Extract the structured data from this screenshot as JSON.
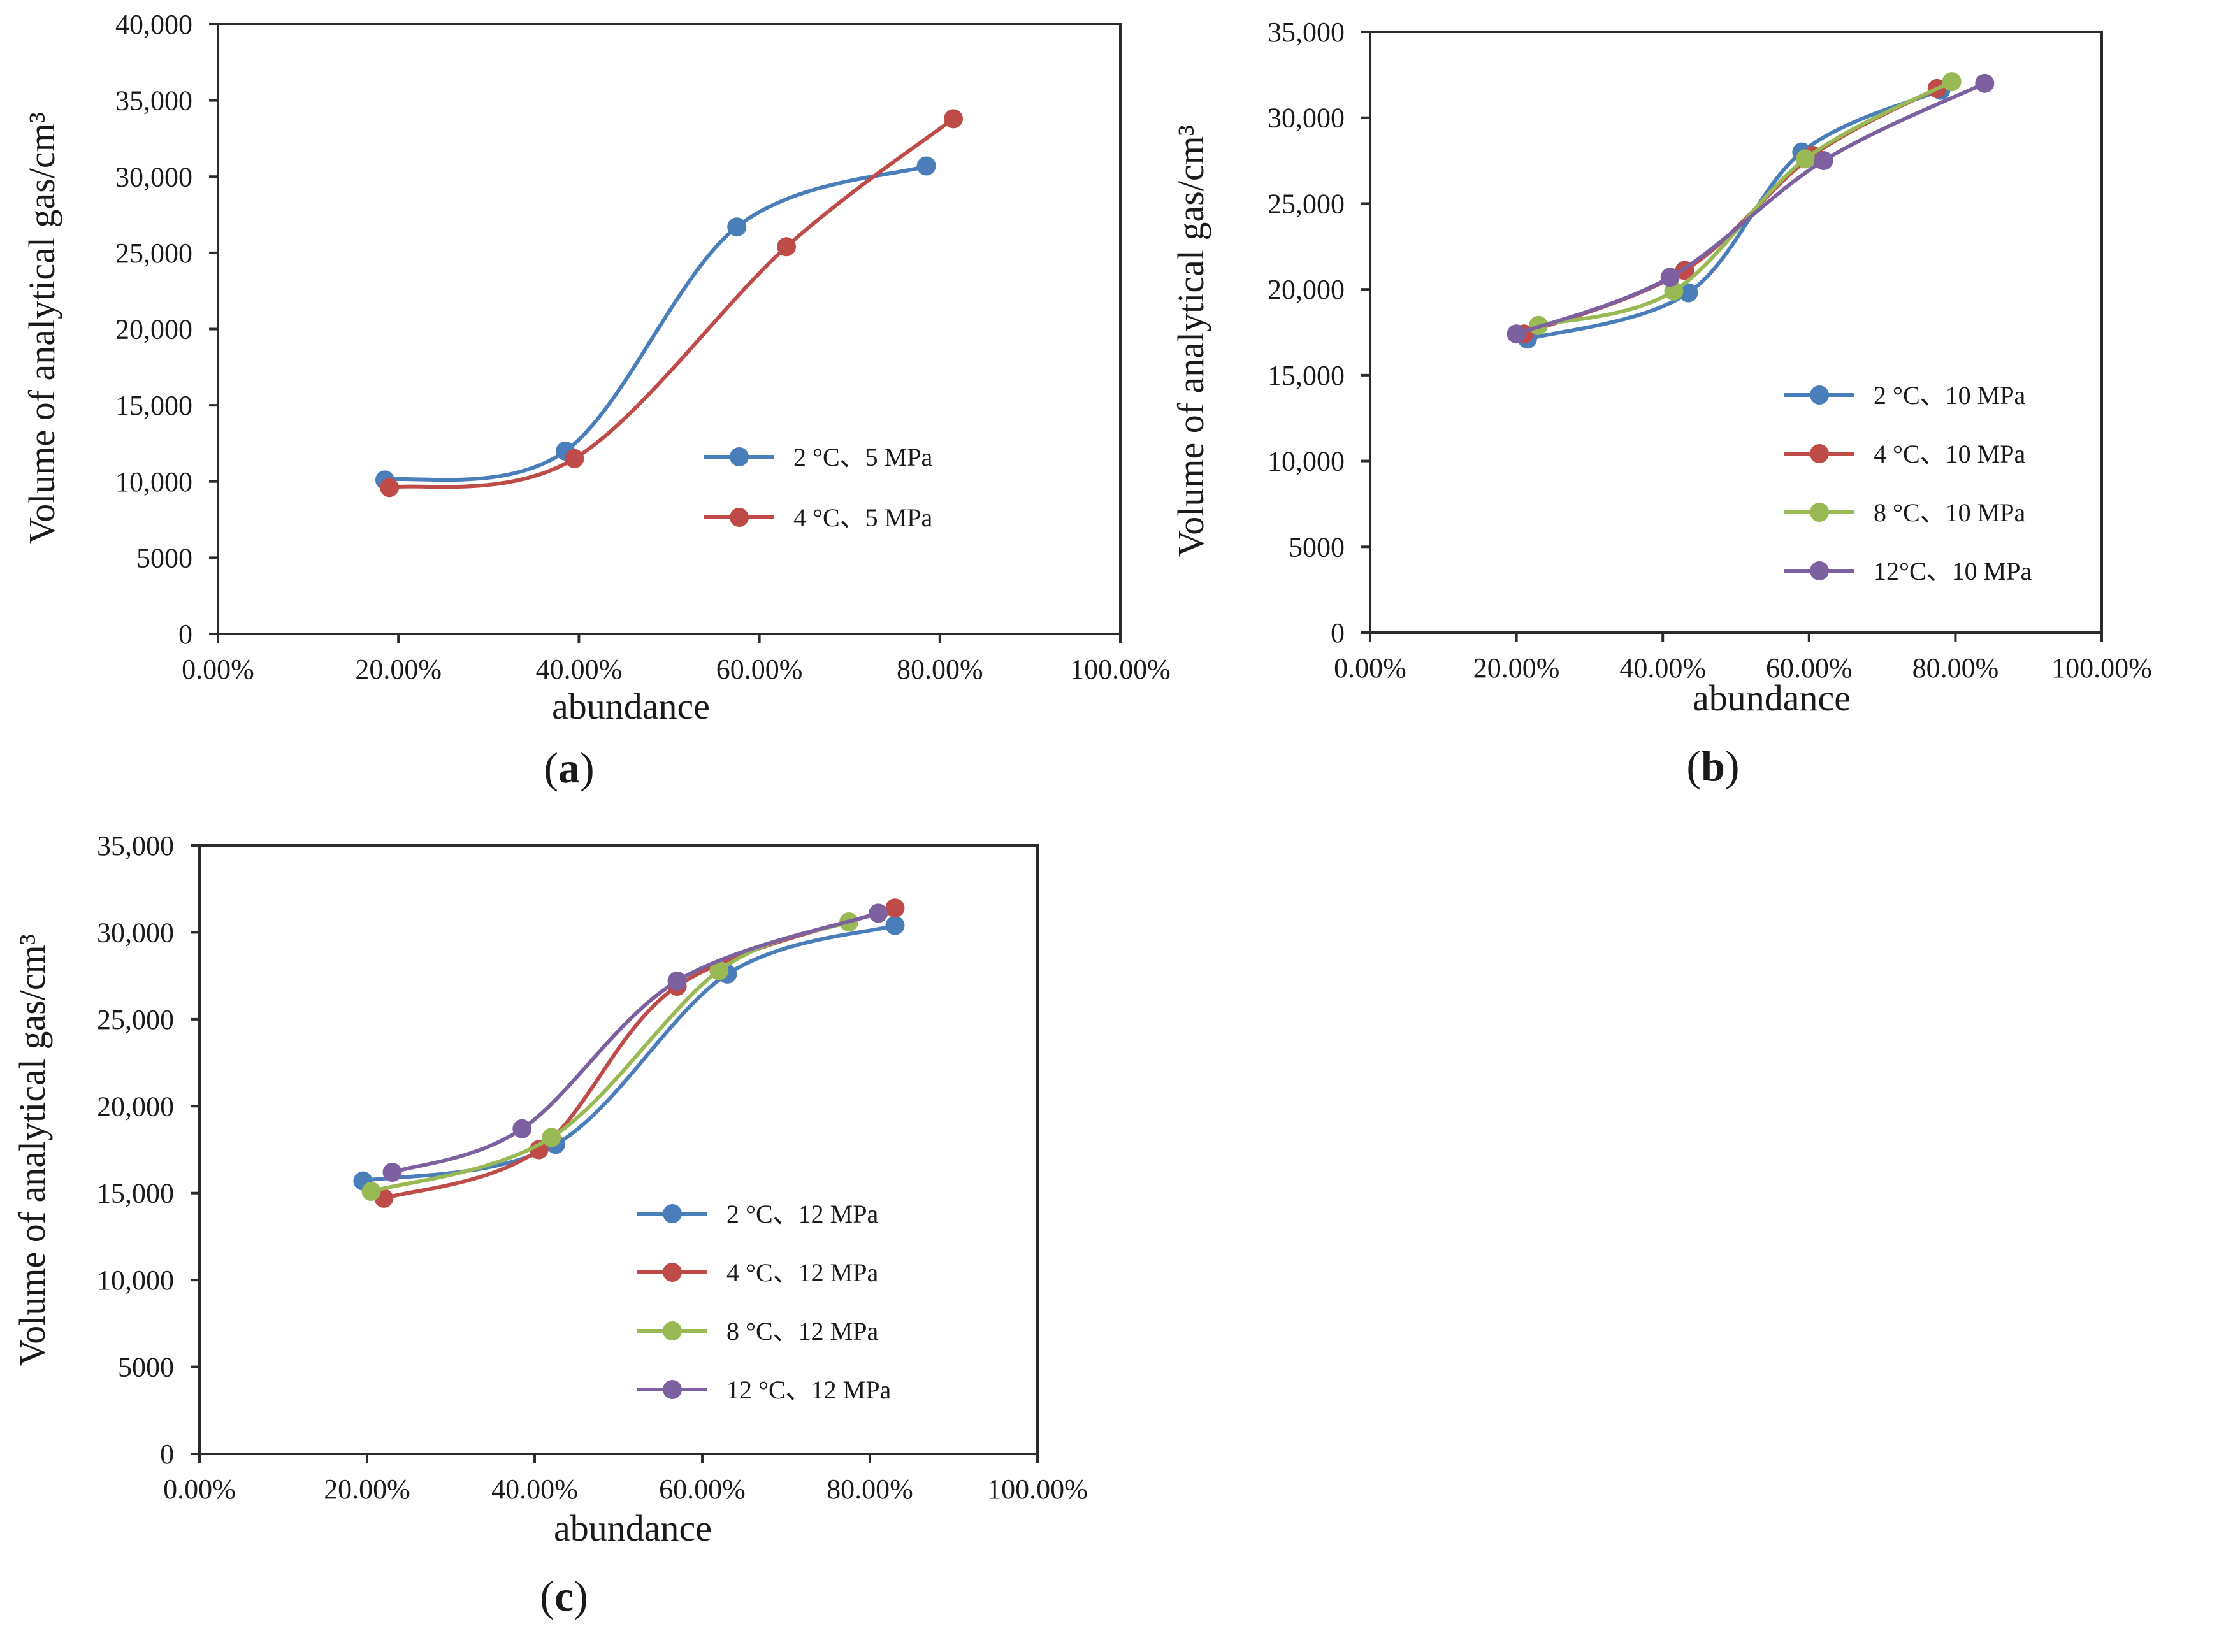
{
  "chart_data": [
    {
      "id": "a",
      "type": "line",
      "panel_label": "(a)",
      "panel_letter": "a",
      "xlabel": "abundance",
      "ylabel": "Volume of analytical gas/cm³",
      "xlim": [
        0,
        100
      ],
      "ylim": [
        0,
        40000
      ],
      "x_ticks": [
        0,
        20,
        40,
        60,
        80,
        100
      ],
      "x_tick_labels": [
        "0.00%",
        "20.00%",
        "40.00%",
        "60.00%",
        "80.00%",
        "100.00%"
      ],
      "y_ticks": [
        0,
        5000,
        10000,
        15000,
        20000,
        25000,
        30000,
        35000,
        40000
      ],
      "y_tick_labels": [
        "0",
        "5000",
        "10,000",
        "15,000",
        "20,000",
        "25,000",
        "30,000",
        "35,000",
        "40,000"
      ],
      "grid": false,
      "legend_position": "right",
      "series": [
        {
          "name": "2 °C、5 MPa",
          "color": "#4a7ebb",
          "points": [
            [
              18.5,
              10100
            ],
            [
              38.5,
              12000
            ],
            [
              57.5,
              26700
            ],
            [
              78.5,
              30700
            ]
          ]
        },
        {
          "name": "4 °C、5 MPa",
          "color": "#be4b48",
          "points": [
            [
              19,
              9600
            ],
            [
              39.5,
              11500
            ],
            [
              63,
              25400
            ],
            [
              81.5,
              33800
            ]
          ]
        }
      ]
    },
    {
      "id": "b",
      "type": "line",
      "panel_label": "(b)",
      "panel_letter": "b",
      "xlabel": "abundance",
      "ylabel": "Volume of analytical gas/cm³",
      "xlim": [
        0,
        100
      ],
      "ylim": [
        0,
        35000
      ],
      "x_ticks": [
        0,
        20,
        40,
        60,
        80,
        100
      ],
      "x_tick_labels": [
        "0.00%",
        "20.00%",
        "40.00%",
        "60.00%",
        "80.00%",
        "100.00%"
      ],
      "y_ticks": [
        0,
        5000,
        10000,
        15000,
        20000,
        25000,
        30000,
        35000
      ],
      "y_tick_labels": [
        "0",
        "5000",
        "10,000",
        "15,000",
        "20,000",
        "25,000",
        "30,000",
        "35,000"
      ],
      "grid": false,
      "legend_position": "right",
      "series": [
        {
          "name": "2 °C、10 MPa",
          "color": "#4a7ebb",
          "points": [
            [
              21.5,
              17100
            ],
            [
              43.5,
              19800
            ],
            [
              59,
              28000
            ],
            [
              78,
              31600
            ]
          ]
        },
        {
          "name": "4 °C、10 MPa",
          "color": "#be4b48",
          "points": [
            [
              21,
              17400
            ],
            [
              43,
              21100
            ],
            [
              60.5,
              27800
            ],
            [
              77.5,
              31700
            ]
          ]
        },
        {
          "name": "8 °C、10 MPa",
          "color": "#98b954",
          "points": [
            [
              23,
              17900
            ],
            [
              41.5,
              19900
            ],
            [
              59.5,
              27600
            ],
            [
              79.5,
              32100
            ]
          ]
        },
        {
          "name": "12°C、10 MPa",
          "color": "#7d60a0",
          "points": [
            [
              20,
              17400
            ],
            [
              41,
              20700
            ],
            [
              62,
              27500
            ],
            [
              84,
              32000
            ]
          ]
        }
      ]
    },
    {
      "id": "c",
      "type": "line",
      "panel_label": "(c)",
      "panel_letter": "c",
      "xlabel": "abundance",
      "ylabel": "Volume of analytical gas/cm³",
      "xlim": [
        0,
        100
      ],
      "ylim": [
        0,
        35000
      ],
      "x_ticks": [
        0,
        20,
        40,
        60,
        80,
        100
      ],
      "x_tick_labels": [
        "0.00%",
        "20.00%",
        "40.00%",
        "60.00%",
        "80.00%",
        "100.00%"
      ],
      "y_ticks": [
        0,
        5000,
        10000,
        15000,
        20000,
        25000,
        30000,
        35000
      ],
      "y_tick_labels": [
        "0",
        "5000",
        "10,000",
        "15,000",
        "20,000",
        "25,000",
        "30,000",
        "35,000"
      ],
      "grid": false,
      "legend_position": "bottom-right",
      "series": [
        {
          "name": "2 °C、12 MPa",
          "color": "#4a7ebb",
          "points": [
            [
              19.5,
              15700
            ],
            [
              42.5,
              17800
            ],
            [
              63,
              27600
            ],
            [
              83,
              30400
            ]
          ]
        },
        {
          "name": "4 °C、12 MPa",
          "color": "#be4b48",
          "points": [
            [
              22,
              14700
            ],
            [
              40.5,
              17500
            ],
            [
              57,
              26900
            ],
            [
              83,
              31400
            ]
          ]
        },
        {
          "name": "8 °C、12 MPa",
          "color": "#98b954",
          "points": [
            [
              20.5,
              15100
            ],
            [
              42,
              18200
            ],
            [
              62,
              27800
            ],
            [
              77.5,
              30600
            ]
          ]
        },
        {
          "name": "12 °C、12 MPa",
          "color": "#7d60a0",
          "points": [
            [
              23,
              16200
            ],
            [
              38.5,
              18700
            ],
            [
              57,
              27200
            ],
            [
              81,
              31100
            ]
          ]
        }
      ]
    }
  ]
}
